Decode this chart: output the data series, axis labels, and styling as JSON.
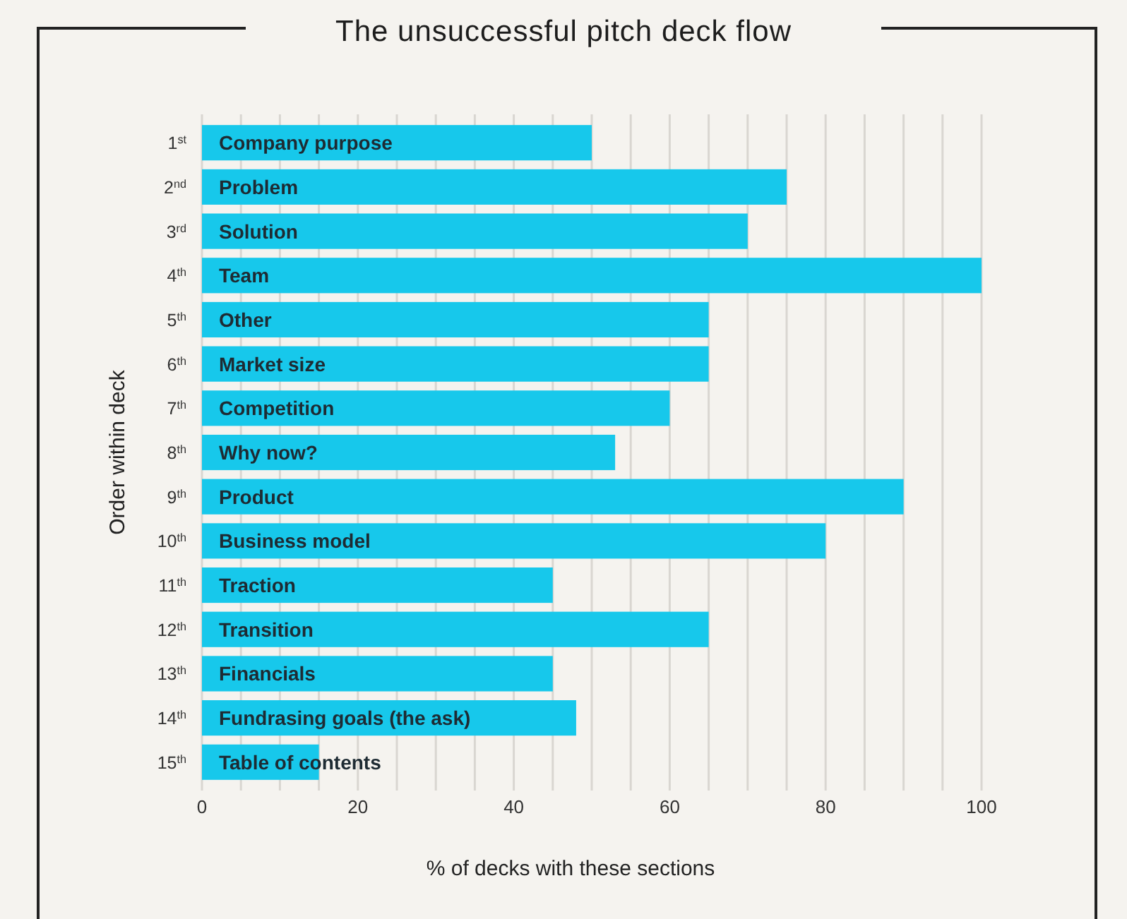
{
  "chart_data": {
    "type": "bar",
    "orientation": "horizontal",
    "title": "The unsuccessful pitch deck flow",
    "xlabel": "% of decks with these sections",
    "ylabel": "Order within deck",
    "categories": [
      "1$^{st}$",
      "2$^{nd}$",
      "3$^{rd}$",
      "4$^{th}$",
      "5$^{th}$",
      "6$^{th}$",
      "7$^{th}$",
      "8$^{th}$",
      "9$^{th}$",
      "10$^{th}$",
      "11$^{th}$",
      "12$^{th}$",
      "13$^{th}$",
      "14$^{th}$",
      "15$^{th}$"
    ],
    "values": [
      50,
      75,
      70,
      100,
      65,
      65,
      60,
      53,
      90,
      80,
      45,
      65,
      45,
      48,
      15
    ],
    "color": "#17c8eb",
    "xlim": [
      0,
      100
    ],
    "xticks": [
      0,
      {
        "value": 5,
        "label": null
      },
      {
        "value": 10,
        "label": null
      },
      {
        "value": 15,
        "label": null
      },
      20,
      {
        "value": 25,
        "label": null
      },
      {
        "value": 30,
        "label": null
      },
      {
        "value": 35,
        "label": null
      },
      40,
      {
        "value": 45,
        "label": null
      },
      {
        "value": 50,
        "label": null
      },
      {
        "value": 55,
        "label": null
      },
      60,
      {
        "value": 65,
        "label": null
      },
      {
        "value": 70,
        "label": null
      },
      {
        "value": 75,
        "label": null
      },
      80,
      {
        "value": 85,
        "label": null
      },
      {
        "value": 90,
        "label": null
      },
      {
        "value": 95,
        "label": null
      },
      100
    ],
    "grid": "x",
    "annotations": [
      "Company purpose",
      "Problem",
      "Solution",
      "Team",
      "Other",
      "Market size",
      "Competition",
      "Why now?",
      "Product",
      "Business model",
      "Traction",
      "Transition",
      "Financials",
      "Fundrasing goals (the ask)",
      "Table of contents"
    ]
  }
}
